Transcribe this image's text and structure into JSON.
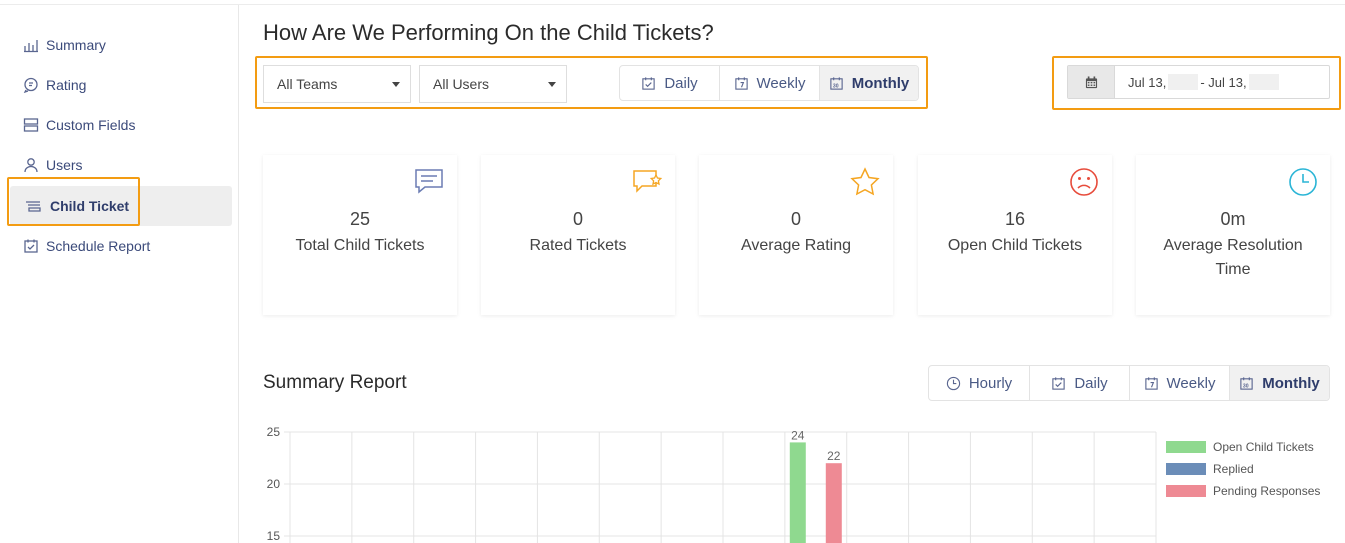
{
  "sidebar": {
    "items": [
      {
        "label": "Summary",
        "icon": "bar-chart-icon"
      },
      {
        "label": "Rating",
        "icon": "chat-bubble-icon"
      },
      {
        "label": "Custom Fields",
        "icon": "fields-icon"
      },
      {
        "label": "Users",
        "icon": "user-icon"
      },
      {
        "label": "Child Ticket",
        "icon": "ticket-icon",
        "active": true
      },
      {
        "label": "Schedule Report",
        "icon": "calendar-check-icon"
      }
    ]
  },
  "header": {
    "title": "How Are We Performing On the Child Tickets?"
  },
  "filters": {
    "team_select": "All Teams",
    "user_select": "All Users",
    "period": {
      "options": [
        "Daily",
        "Weekly",
        "Monthly"
      ],
      "selected": "Monthly"
    },
    "date_range": {
      "start": "Jul 13,",
      "end": "- Jul 13,"
    }
  },
  "stats": [
    {
      "value": "25",
      "label": "Total Child Tickets",
      "icon": "chat-icon",
      "color": "#6b7cb3"
    },
    {
      "value": "0",
      "label": "Rated Tickets",
      "icon": "chat-star-icon",
      "color": "#f5a623"
    },
    {
      "value": "0",
      "label": "Average Rating",
      "icon": "star-icon",
      "color": "#f5a623"
    },
    {
      "value": "16",
      "label": "Open Child Tickets",
      "icon": "sad-face-icon",
      "color": "#e74c3c"
    },
    {
      "value": "0m",
      "label": "Average Resolution Time",
      "icon": "clock-icon",
      "color": "#2bb5d6"
    }
  ],
  "summary_report": {
    "title": "Summary Report",
    "period": {
      "options": [
        "Hourly",
        "Daily",
        "Weekly",
        "Monthly"
      ],
      "selected": "Monthly"
    }
  },
  "chart_data": {
    "type": "bar",
    "categories": [
      "",
      "",
      "",
      "",
      "",
      "",
      "",
      "",
      "",
      "",
      "",
      "",
      "",
      ""
    ],
    "series": [
      {
        "name": "Open Child Tickets",
        "color": "#8fd98f",
        "values": [
          null,
          null,
          null,
          null,
          null,
          null,
          null,
          null,
          24,
          null,
          null,
          null,
          null,
          null
        ]
      },
      {
        "name": "Replied",
        "color": "#6b8db8",
        "values": [
          null,
          null,
          null,
          null,
          null,
          null,
          null,
          null,
          null,
          null,
          null,
          null,
          null,
          null
        ]
      },
      {
        "name": "Pending Responses",
        "color": "#ee8a94",
        "values": [
          null,
          null,
          null,
          null,
          null,
          null,
          null,
          null,
          22,
          null,
          null,
          null,
          null,
          null
        ]
      }
    ],
    "yticks": [
      "25",
      "20",
      "15"
    ],
    "ylim": [
      0,
      25
    ],
    "grid": true,
    "legend": "right"
  }
}
